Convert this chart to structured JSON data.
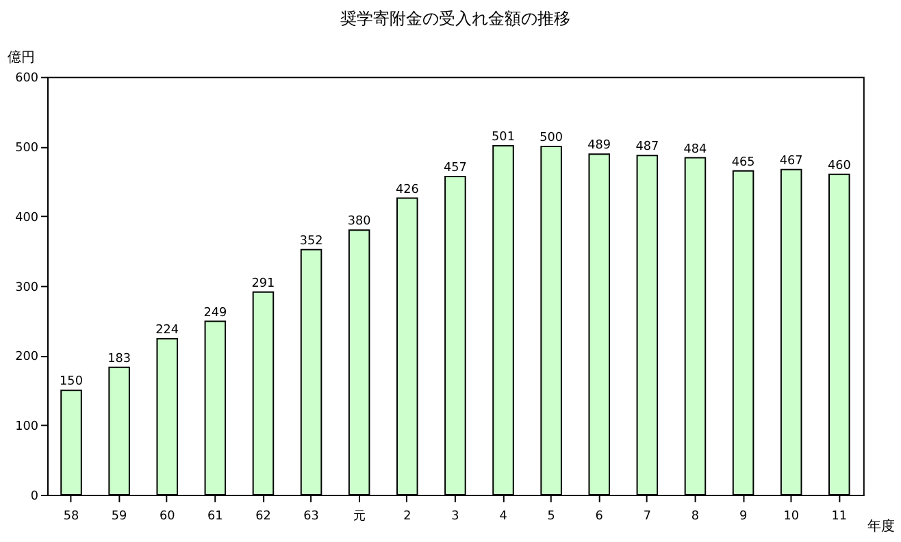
{
  "chart_data": {
    "type": "bar",
    "title": "奨学寄附金の受入れ金額の推移",
    "xlabel": "年度",
    "ylabel": "億円",
    "categories": [
      "58",
      "59",
      "60",
      "61",
      "62",
      "63",
      "元",
      "2",
      "3",
      "4",
      "5",
      "6",
      "7",
      "8",
      "9",
      "10",
      "11"
    ],
    "values": [
      150,
      183,
      224,
      249,
      291,
      352,
      380,
      426,
      457,
      501,
      500,
      489,
      487,
      484,
      465,
      467,
      460
    ],
    "color": "#ccffcc",
    "ylim": [
      0,
      600
    ],
    "yticks": [
      0,
      100,
      200,
      300,
      400,
      500,
      600
    ],
    "grid": false,
    "data_labels": true
  }
}
